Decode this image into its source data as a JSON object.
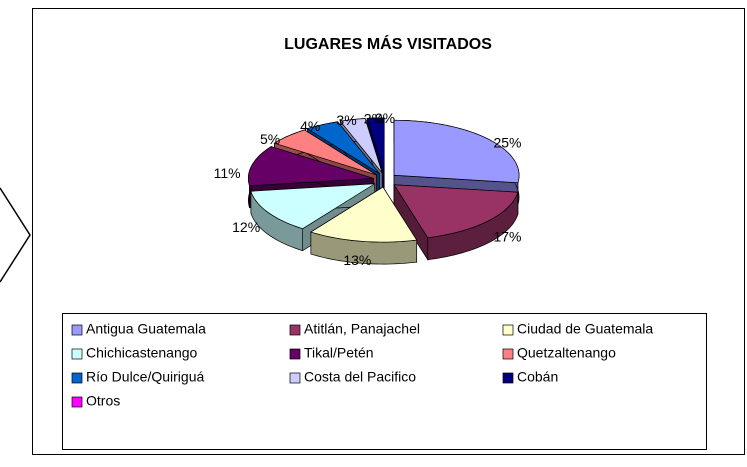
{
  "chart_data": {
    "type": "pie",
    "title": "LUGARES MÁS VISITADOS",
    "categories": [
      "Antigua Guatemala",
      "Atitlán, Panajachel",
      "Ciudad de Guatemala",
      "Chichicastenango",
      "Tikal/Petén",
      "Quetzaltenango",
      "Río Dulce/Quiriguá",
      "Costa del Pacifico",
      "Cobán",
      "Otros"
    ],
    "values": [
      25,
      17,
      13,
      12,
      11,
      5,
      4,
      3,
      2,
      0
    ],
    "value_labels": [
      "25%",
      "17%",
      "13%",
      "12%",
      "11%",
      "5%",
      "4%",
      "3%",
      "2%",
      "0%"
    ],
    "colors": [
      "#9999ff",
      "#993366",
      "#ffffcc",
      "#ccffff",
      "#660066",
      "#ff8080",
      "#0066cc",
      "#ccccff",
      "#000080",
      "#ff00ff"
    ],
    "legend": "bottom"
  }
}
